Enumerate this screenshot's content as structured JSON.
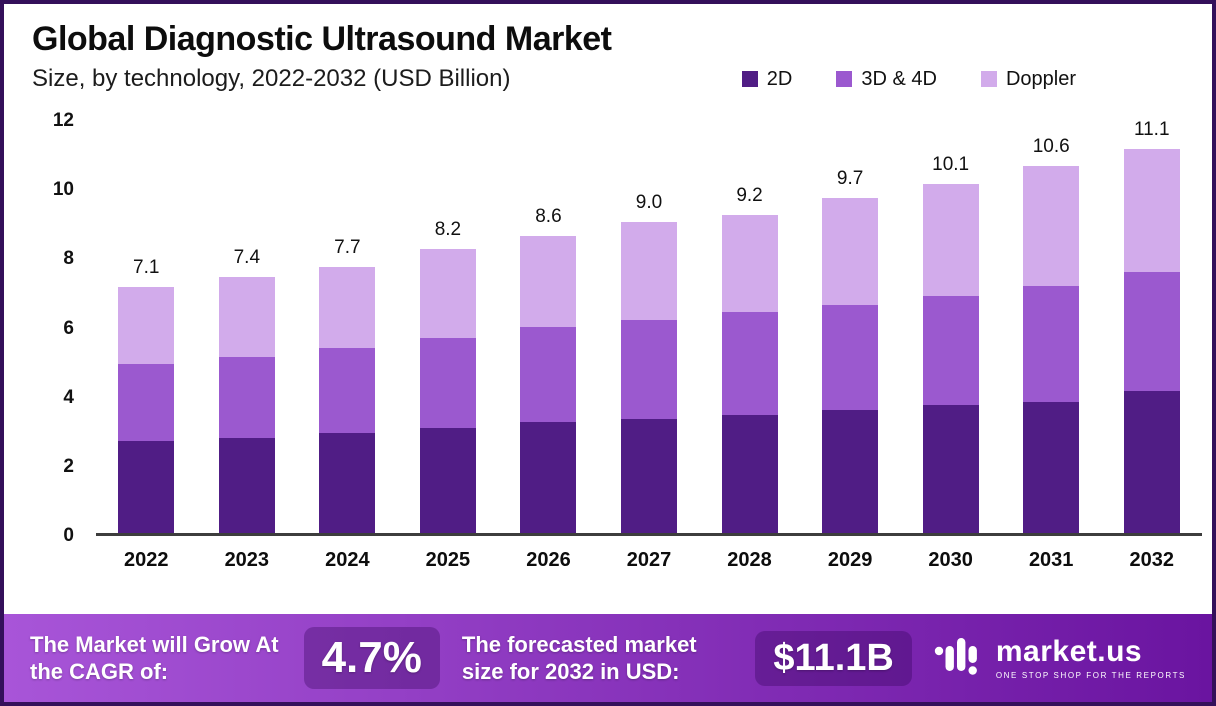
{
  "header": {
    "title": "Global Diagnostic Ultrasound Market",
    "subtitle": "Size, by technology, 2022-2032 (USD Billion)"
  },
  "legend": [
    {
      "label": "2D",
      "color": "#501d85"
    },
    {
      "label": "3D & 4D",
      "color": "#9b59cf"
    },
    {
      "label": "Doppler",
      "color": "#d2abeb"
    }
  ],
  "chart_data": {
    "type": "bar",
    "stacked": true,
    "title": "Global Diagnostic Ultrasound Market",
    "subtitle": "Size, by technology, 2022-2032 (USD Billion)",
    "xlabel": "",
    "ylabel": "",
    "ylim": [
      0,
      12
    ],
    "yticks": [
      0,
      2,
      4,
      6,
      8,
      10,
      12
    ],
    "grid": false,
    "legend_position": "top-right",
    "categories": [
      "2022",
      "2023",
      "2024",
      "2025",
      "2026",
      "2027",
      "2028",
      "2029",
      "2030",
      "2031",
      "2032"
    ],
    "series": [
      {
        "name": "2D",
        "color": "#501d85",
        "values": [
          2.65,
          2.75,
          2.9,
          3.05,
          3.2,
          3.3,
          3.4,
          3.55,
          3.7,
          3.8,
          4.1
        ]
      },
      {
        "name": "3D & 4D",
        "color": "#9b59cf",
        "values": [
          2.25,
          2.35,
          2.45,
          2.6,
          2.75,
          2.85,
          3.0,
          3.05,
          3.15,
          3.35,
          3.45
        ]
      },
      {
        "name": "Doppler",
        "color": "#d2abeb",
        "values": [
          2.2,
          2.3,
          2.35,
          2.55,
          2.65,
          2.85,
          2.8,
          3.1,
          3.25,
          3.45,
          3.55
        ]
      }
    ],
    "totals": [
      7.1,
      7.4,
      7.7,
      8.2,
      8.6,
      9.0,
      9.2,
      9.7,
      10.1,
      10.6,
      11.1
    ],
    "total_labels": [
      "7.1",
      "7.4",
      "7.7",
      "8.2",
      "8.6",
      "9.0",
      "9.2",
      "9.7",
      "10.1",
      "10.6",
      "11.1"
    ]
  },
  "footer": {
    "cagr_label": "The Market will Grow At the CAGR of:",
    "cagr_value": "4.7%",
    "forecast_label": "The forecasted market size for 2032 in USD:",
    "forecast_value": "$11.1B",
    "brand": "market.us",
    "brand_tagline": "ONE STOP SHOP FOR THE REPORTS"
  },
  "theme": {
    "frame_border": "#34105a",
    "footer_gradient_left": "#a855d8",
    "footer_gradient_right": "#6a14a0",
    "value_box_bg": "rgba(47,0,83,0.32)",
    "axis_color": "#3d3d3d"
  }
}
